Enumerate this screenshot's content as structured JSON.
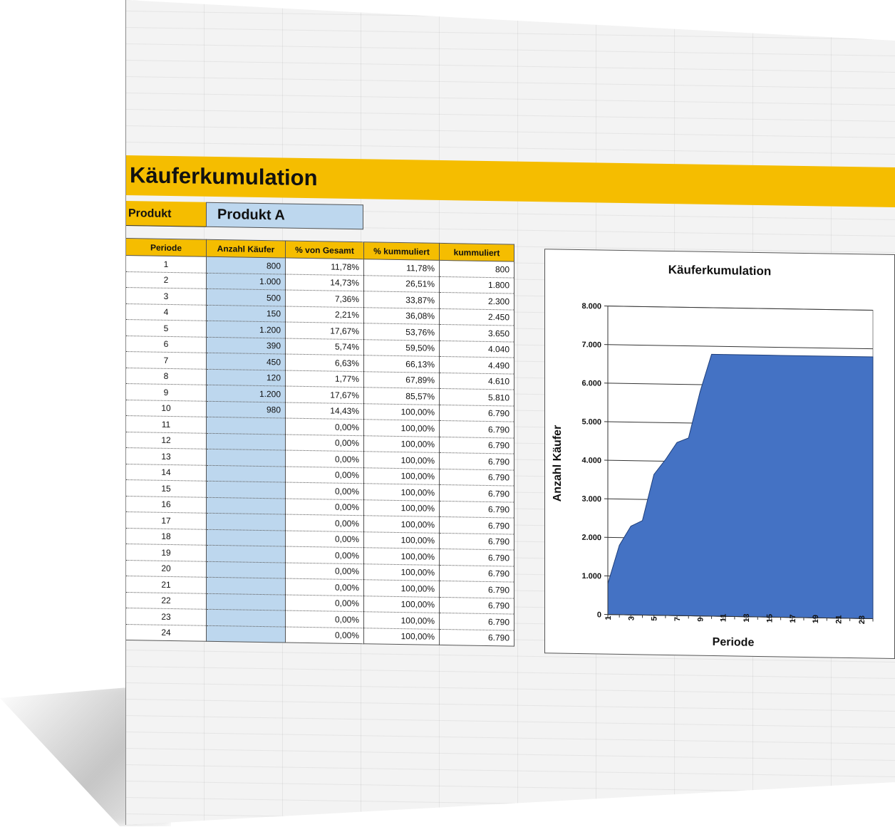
{
  "sheet": {
    "title": "Käuferkumulation",
    "product_label": "Produkt",
    "product_value": "Produkt A"
  },
  "table": {
    "headers": [
      "Periode",
      "Anzahl Käufer",
      "% von Gesamt",
      "% kummuliert",
      "kummuliert"
    ],
    "rows": [
      [
        "1",
        "800",
        "11,78%",
        "11,78%",
        "800"
      ],
      [
        "2",
        "1.000",
        "14,73%",
        "26,51%",
        "1.800"
      ],
      [
        "3",
        "500",
        "7,36%",
        "33,87%",
        "2.300"
      ],
      [
        "4",
        "150",
        "2,21%",
        "36,08%",
        "2.450"
      ],
      [
        "5",
        "1.200",
        "17,67%",
        "53,76%",
        "3.650"
      ],
      [
        "6",
        "390",
        "5,74%",
        "59,50%",
        "4.040"
      ],
      [
        "7",
        "450",
        "6,63%",
        "66,13%",
        "4.490"
      ],
      [
        "8",
        "120",
        "1,77%",
        "67,89%",
        "4.610"
      ],
      [
        "9",
        "1.200",
        "17,67%",
        "85,57%",
        "5.810"
      ],
      [
        "10",
        "980",
        "14,43%",
        "100,00%",
        "6.790"
      ],
      [
        "11",
        "",
        "0,00%",
        "100,00%",
        "6.790"
      ],
      [
        "12",
        "",
        "0,00%",
        "100,00%",
        "6.790"
      ],
      [
        "13",
        "",
        "0,00%",
        "100,00%",
        "6.790"
      ],
      [
        "14",
        "",
        "0,00%",
        "100,00%",
        "6.790"
      ],
      [
        "15",
        "",
        "0,00%",
        "100,00%",
        "6.790"
      ],
      [
        "16",
        "",
        "0,00%",
        "100,00%",
        "6.790"
      ],
      [
        "17",
        "",
        "0,00%",
        "100,00%",
        "6.790"
      ],
      [
        "18",
        "",
        "0,00%",
        "100,00%",
        "6.790"
      ],
      [
        "19",
        "",
        "0,00%",
        "100,00%",
        "6.790"
      ],
      [
        "20",
        "",
        "0,00%",
        "100,00%",
        "6.790"
      ],
      [
        "21",
        "",
        "0,00%",
        "100,00%",
        "6.790"
      ],
      [
        "22",
        "",
        "0,00%",
        "100,00%",
        "6.790"
      ],
      [
        "23",
        "",
        "0,00%",
        "100,00%",
        "6.790"
      ],
      [
        "24",
        "",
        "0,00%",
        "100,00%",
        "6.790"
      ]
    ]
  },
  "chart_data": {
    "type": "area",
    "title": "Käuferkumulation",
    "xlabel": "Periode",
    "ylabel": "Anzahl Käufer",
    "x": [
      1,
      2,
      3,
      4,
      5,
      6,
      7,
      8,
      9,
      10,
      11,
      12,
      13,
      14,
      15,
      16,
      17,
      18,
      19,
      20,
      21,
      22,
      23,
      24
    ],
    "x_tick_labels": [
      "1",
      "3",
      "5",
      "7",
      "9",
      "11",
      "13",
      "15",
      "17",
      "19",
      "21",
      "23"
    ],
    "series": [
      {
        "values": [
          800,
          1800,
          2300,
          2450,
          3650,
          4040,
          4490,
          4610,
          5810,
          6790,
          6790,
          6790,
          6790,
          6790,
          6790,
          6790,
          6790,
          6790,
          6790,
          6790,
          6790,
          6790,
          6790,
          6790
        ]
      }
    ],
    "ylim": [
      0,
      8000
    ],
    "y_ticks": [
      0,
      1000,
      2000,
      3000,
      4000,
      5000,
      6000,
      7000,
      8000
    ],
    "y_tick_labels": [
      "0",
      "1.000",
      "2.000",
      "3.000",
      "4.000",
      "5.000",
      "6.000",
      "7.000",
      "8.000"
    ],
    "grid": "horizontal",
    "legend": "none",
    "colors": {
      "area": "#4472c4",
      "band": "#f5bd00",
      "input": "#bdd7ee"
    }
  }
}
